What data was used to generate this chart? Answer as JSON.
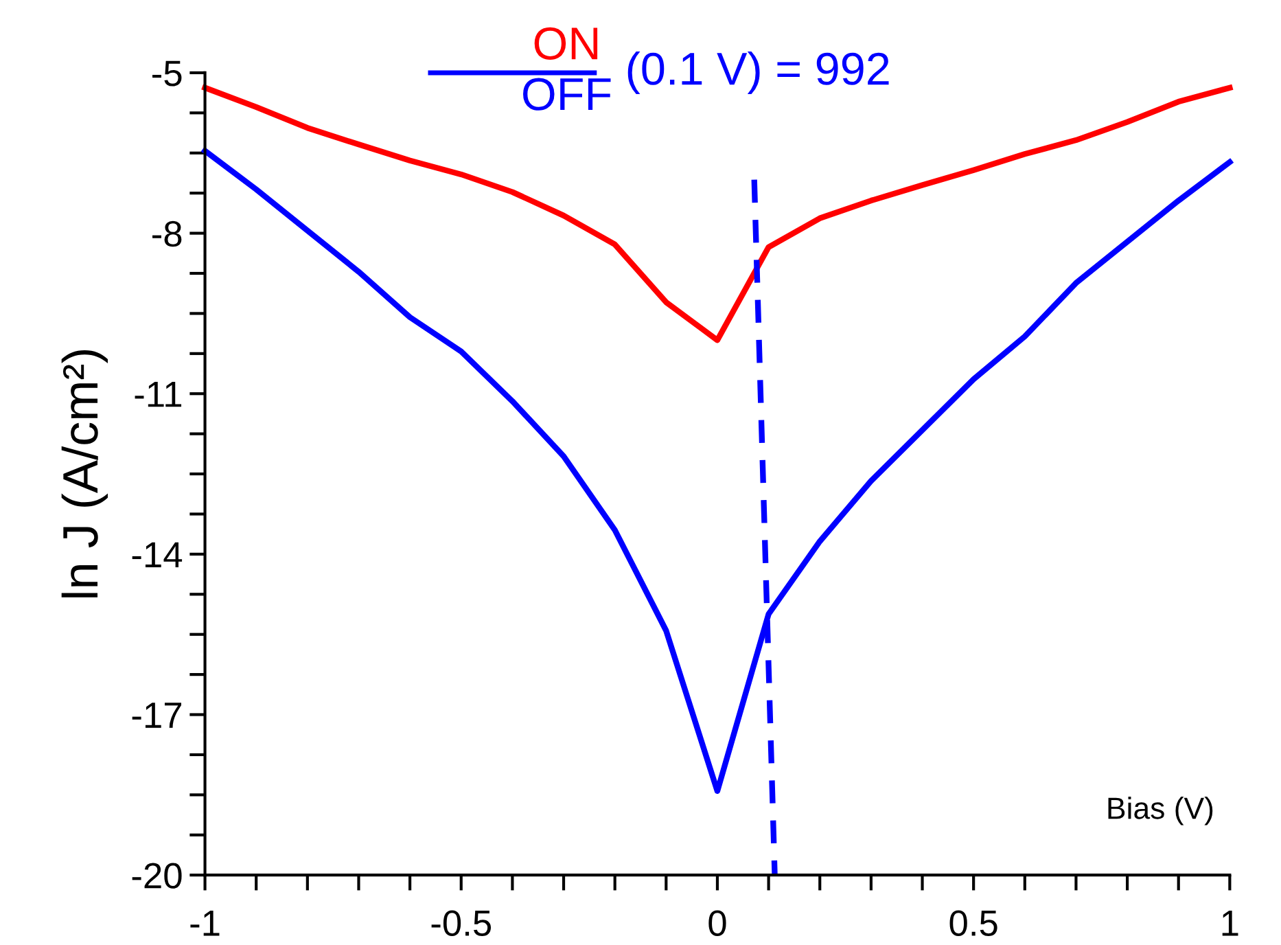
{
  "chart_data": {
    "type": "line",
    "xlabel": "Bias (V)",
    "ylabel": "ln J (A/cm²)",
    "x": [
      -1,
      -0.9,
      -0.8,
      -0.7,
      -0.6,
      -0.5,
      -0.4,
      -0.3,
      -0.2,
      -0.1,
      0,
      0.1,
      0.2,
      0.3,
      0.4,
      0.5,
      0.6,
      0.7,
      0.8,
      0.9,
      1
    ],
    "series": [
      {
        "color": "#ff0000",
        "values": [
          -5.28,
          -5.64,
          -6.03,
          -6.34,
          -6.64,
          -6.9,
          -7.23,
          -7.67,
          -8.21,
          -9.29,
          -10.0,
          -8.26,
          -7.72,
          -7.39,
          -7.1,
          -6.82,
          -6.52,
          -6.26,
          -5.92,
          -5.54,
          -5.28
        ]
      },
      {
        "color": "#0000ff",
        "values": [
          -6.46,
          -7.18,
          -7.95,
          -8.72,
          -9.57,
          -10.21,
          -11.14,
          -12.17,
          -13.55,
          -15.43,
          -18.43,
          -15.12,
          -13.76,
          -12.63,
          -11.68,
          -10.73,
          -9.93,
          -8.93,
          -8.16,
          -7.39,
          -6.67
        ]
      },
      {
        "color": "#0000ff",
        "x": [
          0.072,
          0.112
        ],
        "values": [
          -7.0,
          -20
        ],
        "line_style": "dashed"
      }
    ],
    "annotations": [
      "ON",
      "OFF",
      "(0.1 V) = 992"
    ],
    "xlim": [
      -1,
      1
    ],
    "ylim": [
      -20,
      -5
    ],
    "xticks": [
      -1,
      -0.5,
      0,
      0.5,
      1
    ],
    "yticks": [
      -20,
      -17,
      -14,
      -11,
      -8,
      -5
    ],
    "grid": false,
    "legend": false,
    "marker": "none",
    "line_style": "solid"
  }
}
